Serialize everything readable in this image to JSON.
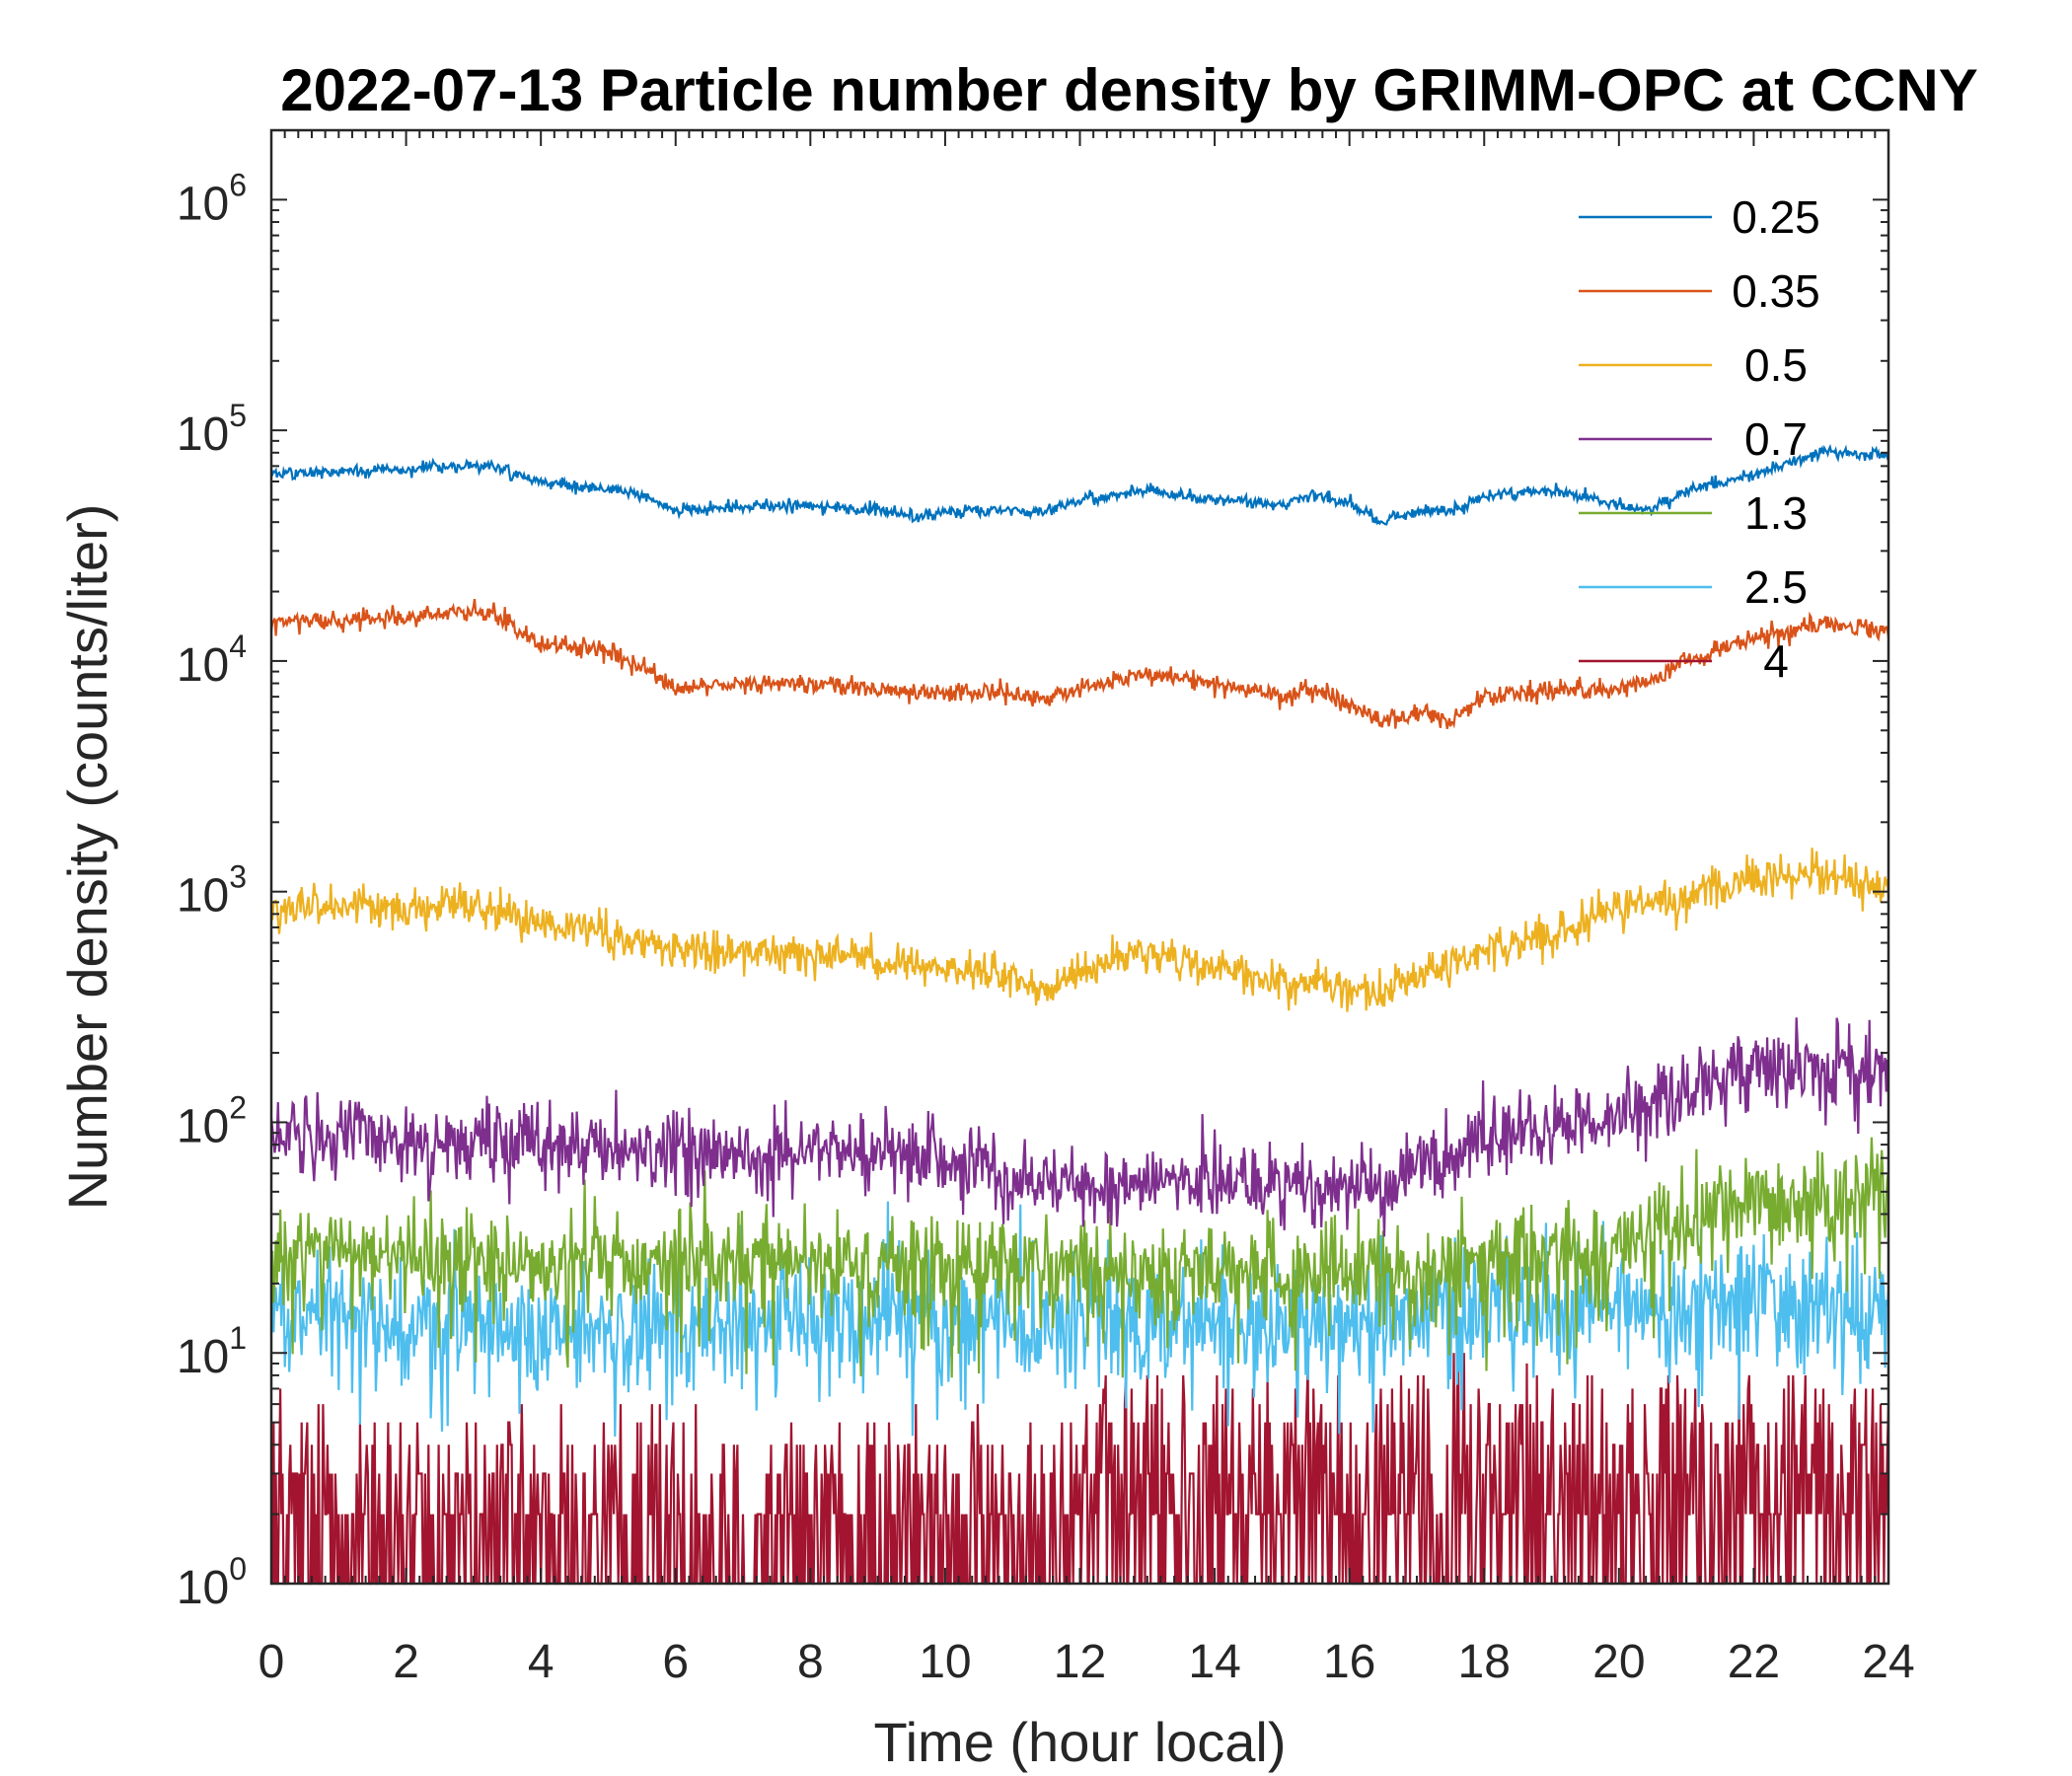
{
  "chart_data": {
    "type": "line",
    "title": "2022-07-13 Particle number density by GRIMM-OPC at CCNY",
    "xlabel": "Time (hour local)",
    "ylabel": "Number density (counts/liter)",
    "xlim": [
      0,
      24
    ],
    "ylim": [
      1,
      2000000
    ],
    "yscale": "log",
    "x_ticks": [
      0,
      2,
      4,
      6,
      8,
      10,
      12,
      14,
      16,
      18,
      20,
      22,
      24
    ],
    "x_tick_labels": [
      "0",
      "2",
      "4",
      "6",
      "8",
      "10",
      "12",
      "14",
      "16",
      "18",
      "20",
      "22",
      "24"
    ],
    "y_ticks": [
      {
        "value": 1,
        "base": "10",
        "exp": "0"
      },
      {
        "value": 10,
        "base": "10",
        "exp": "1"
      },
      {
        "value": 100,
        "base": "10",
        "exp": "2"
      },
      {
        "value": 1000,
        "base": "10",
        "exp": "3"
      },
      {
        "value": 10000,
        "base": "10",
        "exp": "4"
      },
      {
        "value": 100000,
        "base": "10",
        "exp": "5"
      },
      {
        "value": 1000000,
        "base": "10",
        "exp": "6"
      }
    ],
    "legend_position": "top-right",
    "series": [
      {
        "name": "0.25",
        "color": "#0072BD",
        "noise": 0.03,
        "x": [
          0,
          1,
          2,
          3,
          3.3,
          4,
          5,
          5.5,
          6,
          7,
          8,
          9,
          9.5,
          10,
          11,
          11.5,
          12,
          13,
          14,
          15,
          15.5,
          16,
          16.5,
          17,
          17.5,
          18,
          19,
          19.5,
          20,
          20.5,
          21,
          22,
          23,
          24
        ],
        "values": [
          65000,
          66000,
          68000,
          70000,
          70000,
          60000,
          55000,
          52000,
          45000,
          47000,
          47000,
          45000,
          42000,
          44000,
          45000,
          45000,
          50000,
          55000,
          50000,
          48000,
          52000,
          48000,
          40000,
          45000,
          45000,
          52000,
          55000,
          52000,
          47000,
          46000,
          55000,
          65000,
          80000,
          78000
        ]
      },
      {
        "name": "0.35",
        "color": "#D95319",
        "noise": 0.05,
        "x": [
          0,
          1,
          2,
          3,
          3.3,
          4,
          5,
          5.5,
          6,
          7,
          8,
          9,
          10,
          11,
          11.5,
          12,
          13,
          14,
          15,
          15.5,
          16,
          16.5,
          17,
          17.5,
          18,
          19,
          20,
          20.5,
          21,
          22,
          23,
          24
        ],
        "values": [
          15000,
          15000,
          15500,
          16500,
          16000,
          12000,
          11000,
          9500,
          7500,
          8000,
          8000,
          7500,
          7300,
          7300,
          6800,
          7500,
          9000,
          8000,
          7000,
          7500,
          6500,
          5500,
          6000,
          5500,
          7000,
          7500,
          7500,
          8000,
          10000,
          12500,
          14500,
          13500
        ]
      },
      {
        "name": "0.5",
        "color": "#EDB120",
        "noise": 0.1,
        "x": [
          0,
          1,
          2,
          3,
          4,
          5,
          6,
          7,
          8,
          9,
          10,
          11,
          11.5,
          12,
          13,
          14,
          15,
          16,
          16.5,
          17,
          18,
          19,
          20,
          21,
          22,
          23,
          24
        ],
        "values": [
          850,
          850,
          850,
          880,
          750,
          650,
          550,
          550,
          550,
          500,
          480,
          420,
          380,
          450,
          550,
          450,
          420,
          380,
          350,
          450,
          550,
          650,
          850,
          950,
          1150,
          1200,
          1000
        ]
      },
      {
        "name": "0.7",
        "color": "#7E2F8E",
        "noise": 0.2,
        "x": [
          0,
          2,
          4,
          6,
          8,
          10,
          11,
          12,
          14,
          16,
          16.5,
          17,
          18,
          19,
          20,
          21,
          22,
          23,
          24
        ],
        "values": [
          85,
          85,
          80,
          75,
          75,
          70,
          55,
          55,
          55,
          50,
          50,
          65,
          85,
          90,
          110,
          140,
          170,
          175,
          160
        ]
      },
      {
        "name": "1.3",
        "color": "#77AC30",
        "noise": 0.25,
        "x": [
          0,
          4,
          8,
          12,
          16,
          18,
          20,
          22,
          24
        ],
        "values": [
          28,
          25,
          25,
          24,
          22,
          25,
          30,
          42,
          50
        ]
      },
      {
        "name": "2.5",
        "color": "#4DBEEE",
        "noise": 0.3,
        "x": [
          0,
          4,
          8,
          12,
          16,
          18,
          20,
          22,
          24
        ],
        "values": [
          15,
          13,
          14,
          14,
          14,
          15,
          16,
          17,
          15
        ]
      },
      {
        "name": "4",
        "color": "#A2142F",
        "noise": 0.5,
        "x": [
          0,
          4,
          8,
          11,
          12,
          16,
          17,
          20,
          24
        ],
        "values": [
          2.2,
          2,
          2,
          2,
          3,
          3,
          3.5,
          3,
          3
        ]
      }
    ]
  }
}
